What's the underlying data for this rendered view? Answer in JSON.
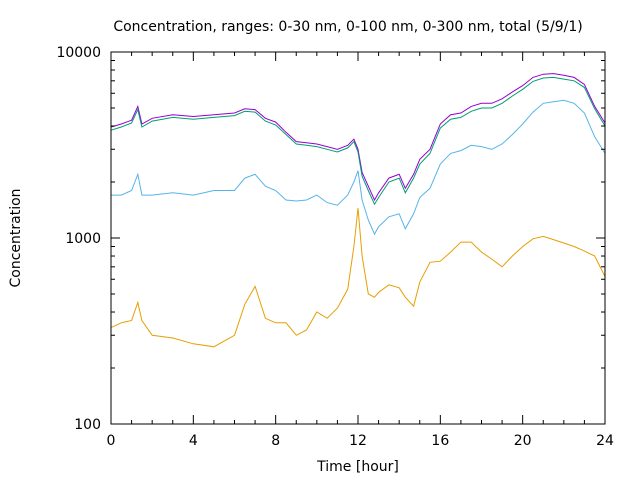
{
  "chart_data": {
    "type": "line",
    "title": "Concentration, ranges: 0-30 nm, 0-100 nm, 0-300 nm, total (5/9/1)",
    "xlabel": "Time [hour]",
    "ylabel": "Concentration",
    "xlim": [
      0,
      24
    ],
    "ylim": [
      100,
      10000
    ],
    "yscale": "log",
    "grid": false,
    "legend": "none",
    "x_ticks": [
      "0",
      "4",
      "8",
      "12",
      "16",
      "20",
      "24"
    ],
    "y_ticks": [
      "100",
      "1000",
      "10000"
    ],
    "x": [
      0,
      0.5,
      1,
      1.3,
      1.5,
      2,
      3,
      4,
      5,
      6,
      6.5,
      7,
      7.5,
      8,
      8.5,
      9,
      9.5,
      10,
      10.5,
      11,
      11.5,
      11.8,
      12,
      12.2,
      12.5,
      12.8,
      13,
      13.5,
      14,
      14.3,
      14.7,
      15,
      15.5,
      16,
      16.5,
      17,
      17.5,
      18,
      18.5,
      19,
      19.5,
      20,
      20.5,
      21,
      21.5,
      22,
      22.5,
      23,
      23.5,
      24
    ],
    "series": [
      {
        "color": "#9400d3",
        "values": [
          3950,
          4100,
          4300,
          5100,
          4100,
          4400,
          4600,
          4500,
          4600,
          4700,
          4950,
          4900,
          4400,
          4200,
          3700,
          3300,
          3250,
          3200,
          3100,
          3000,
          3150,
          3400,
          3000,
          2250,
          1900,
          1600,
          1750,
          2100,
          2200,
          1850,
          2200,
          2650,
          3000,
          4100,
          4600,
          4700,
          5100,
          5300,
          5300,
          5600,
          6100,
          6600,
          7300,
          7600,
          7650,
          7500,
          7300,
          6700,
          5100,
          4150
        ]
      },
      {
        "color": "#009e73",
        "values": [
          3800,
          3950,
          4150,
          4900,
          3950,
          4250,
          4450,
          4350,
          4450,
          4550,
          4800,
          4750,
          4250,
          4050,
          3600,
          3200,
          3150,
          3100,
          3000,
          2900,
          3050,
          3300,
          2900,
          2150,
          1800,
          1520,
          1650,
          2000,
          2100,
          1750,
          2100,
          2500,
          2850,
          3900,
          4350,
          4450,
          4800,
          5000,
          5000,
          5300,
          5800,
          6300,
          6950,
          7250,
          7300,
          7150,
          7000,
          6450,
          4950,
          4000
        ]
      },
      {
        "color": "#56b4e9",
        "values": [
          1700,
          1700,
          1800,
          2200,
          1700,
          1700,
          1750,
          1700,
          1800,
          1800,
          2100,
          2200,
          1900,
          1800,
          1600,
          1580,
          1600,
          1700,
          1550,
          1500,
          1700,
          2000,
          2300,
          1600,
          1250,
          1050,
          1150,
          1300,
          1350,
          1120,
          1350,
          1650,
          1850,
          2500,
          2850,
          2950,
          3150,
          3100,
          3000,
          3200,
          3600,
          4100,
          4750,
          5300,
          5400,
          5500,
          5300,
          4700,
          3500,
          2850
        ]
      },
      {
        "color": "#e69f00",
        "values": [
          330,
          350,
          360,
          450,
          360,
          300,
          290,
          270,
          260,
          300,
          440,
          550,
          370,
          350,
          350,
          300,
          320,
          400,
          370,
          420,
          530,
          900,
          1450,
          800,
          500,
          480,
          510,
          560,
          540,
          480,
          430,
          580,
          740,
          750,
          840,
          950,
          950,
          840,
          770,
          700,
          800,
          900,
          990,
          1020,
          980,
          940,
          900,
          850,
          800,
          620
        ]
      }
    ]
  }
}
